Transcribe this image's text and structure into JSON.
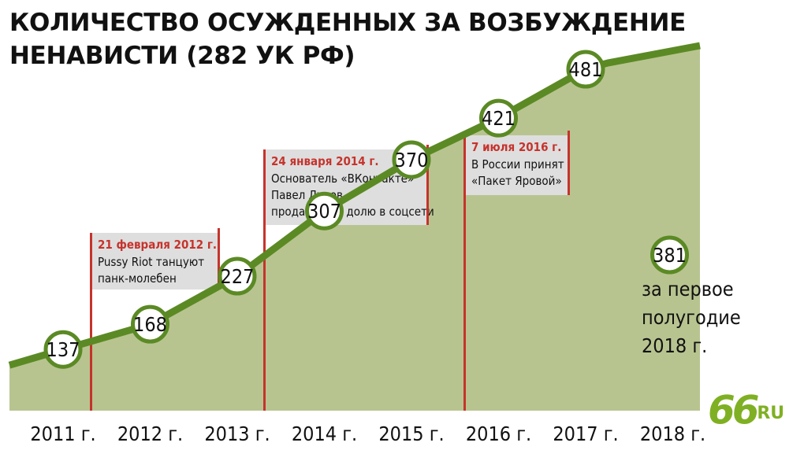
{
  "title": "КОЛИЧЕСТВО ОСУЖДЕННЫХ ЗА ВОЗБУЖДЕНИЕ НЕНАВИСТИ (282 УК РФ)",
  "logo": {
    "text_main": "66",
    "text_suffix": ".RU",
    "color": "#7fb023"
  },
  "colors": {
    "line": "#5b8a24",
    "area": "#b8c490",
    "annotation": "#c6332c",
    "box": "#dedede"
  },
  "chart_data": {
    "type": "area",
    "title": "КОЛИЧЕСТВО ОСУЖДЕННЫХ ЗА ВОЗБУЖДЕНИЕ НЕНАВИСТИ (282 УК РФ)",
    "categories": [
      "2011 г.",
      "2012 г.",
      "2013 г.",
      "2014 г.",
      "2015 г.",
      "2016 г.",
      "2017 г.",
      "2018 г."
    ],
    "series": [
      {
        "values": [
          137,
          168,
          227,
          307,
          370,
          421,
          481,
          null
        ]
      }
    ],
    "partial": {
      "category": "2018 г.",
      "value": 381,
      "label": "381",
      "note": [
        "за первое",
        "полугодие",
        "2018 г."
      ]
    },
    "annotations": [
      {
        "date": "21 февраля 2012 г.",
        "lines": [
          "Pussy Riot танцуют",
          "панк-молебен"
        ]
      },
      {
        "date": "24 января 2014 г.",
        "lines": [
          "Основатель «ВКонтакте»",
          "Павел Дуров",
          "продал свою долю в соцсети"
        ]
      },
      {
        "date": "7 июля 2016 г.",
        "lines": [
          "В России принят",
          "«Пакет Яровой»"
        ]
      }
    ],
    "grid": false,
    "legend": "none"
  }
}
